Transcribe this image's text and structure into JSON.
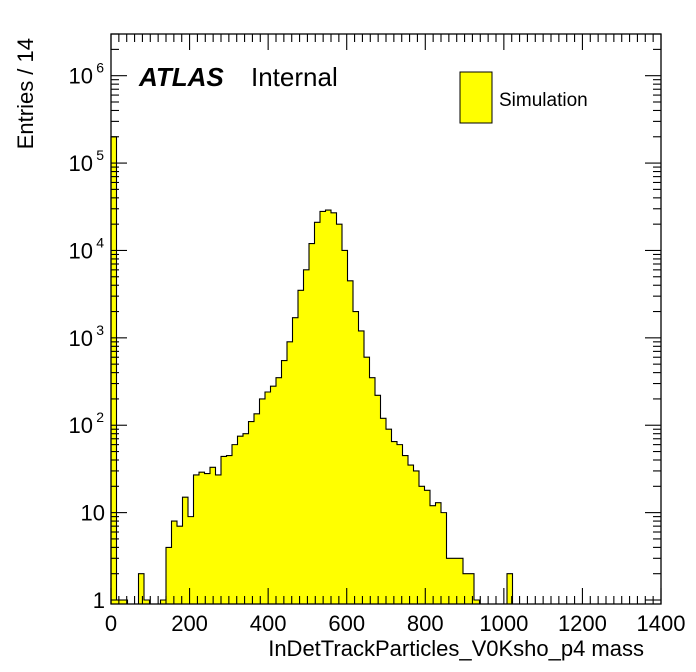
{
  "chart_data": {
    "type": "bar",
    "xlabel": "InDetTrackParticles_V0Ksho_p4 mass",
    "ylabel": "Entries / 14",
    "xlim": [
      0,
      1400
    ],
    "ylim": [
      0.9,
      3000000
    ],
    "log_y": true,
    "bin_width": 14,
    "x_ticks": [
      "0",
      "200",
      "400",
      "600",
      "800",
      "1000",
      "1200",
      "1400"
    ],
    "y_ticks": [
      {
        "value": 1,
        "base": "1",
        "exp": ""
      },
      {
        "value": 10,
        "base": "10",
        "exp": ""
      },
      {
        "value": 100,
        "base": "10",
        "exp": "2"
      },
      {
        "value": 1000,
        "base": "10",
        "exp": "3"
      },
      {
        "value": 10000,
        "base": "10",
        "exp": "4"
      },
      {
        "value": 100000,
        "base": "10",
        "exp": "5"
      },
      {
        "value": 1000000,
        "base": "10",
        "exp": "6"
      }
    ],
    "atlas_label": "ATLAS",
    "atlas_status": "Internal",
    "legend": {
      "position": "top-right",
      "entries": [
        {
          "label": "Simulation",
          "color": "#ffff00"
        }
      ]
    },
    "fill_color": "#ffff00",
    "line_color": "#000000",
    "bins": [
      [
        0,
        200000
      ],
      [
        14,
        1
      ],
      [
        28,
        1
      ],
      [
        70,
        2
      ],
      [
        84,
        1
      ],
      [
        126,
        1
      ],
      [
        140,
        4
      ],
      [
        154,
        8
      ],
      [
        168,
        7
      ],
      [
        182,
        15
      ],
      [
        196,
        9
      ],
      [
        210,
        27
      ],
      [
        224,
        29
      ],
      [
        238,
        28
      ],
      [
        252,
        33
      ],
      [
        266,
        27
      ],
      [
        280,
        44
      ],
      [
        294,
        45
      ],
      [
        308,
        60
      ],
      [
        322,
        75
      ],
      [
        336,
        80
      ],
      [
        350,
        110
      ],
      [
        364,
        135
      ],
      [
        378,
        200
      ],
      [
        392,
        240
      ],
      [
        406,
        280
      ],
      [
        420,
        350
      ],
      [
        434,
        550
      ],
      [
        448,
        900
      ],
      [
        462,
        1700
      ],
      [
        476,
        3500
      ],
      [
        490,
        6000
      ],
      [
        504,
        12000
      ],
      [
        518,
        21000
      ],
      [
        532,
        28000
      ],
      [
        546,
        29000
      ],
      [
        560,
        27000
      ],
      [
        574,
        20000
      ],
      [
        588,
        10000
      ],
      [
        602,
        4500
      ],
      [
        616,
        2000
      ],
      [
        630,
        1200
      ],
      [
        644,
        600
      ],
      [
        658,
        350
      ],
      [
        672,
        220
      ],
      [
        686,
        120
      ],
      [
        700,
        90
      ],
      [
        714,
        65
      ],
      [
        728,
        60
      ],
      [
        742,
        45
      ],
      [
        756,
        35
      ],
      [
        770,
        30
      ],
      [
        784,
        20
      ],
      [
        798,
        18
      ],
      [
        812,
        12
      ],
      [
        826,
        13
      ],
      [
        840,
        10
      ],
      [
        854,
        3
      ],
      [
        868,
        3
      ],
      [
        882,
        3
      ],
      [
        896,
        2
      ],
      [
        910,
        2
      ],
      [
        924,
        1
      ],
      [
        1008,
        2
      ]
    ]
  }
}
